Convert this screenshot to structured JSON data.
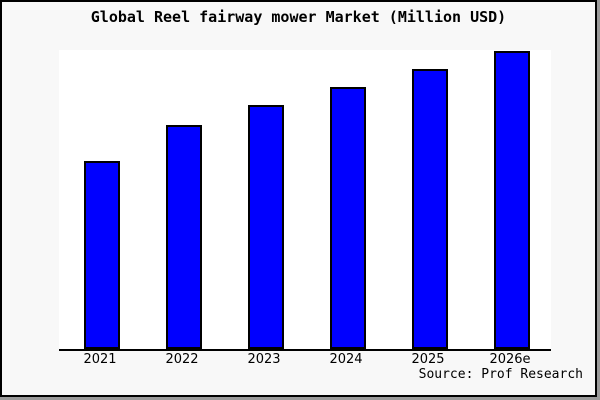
{
  "chart_data": {
    "type": "bar",
    "title": "Global Reel fairway mower Market (Million USD)",
    "categories": [
      "2021",
      "2022",
      "2023",
      "2024",
      "2025",
      "2026e"
    ],
    "values": [
      63,
      75,
      82,
      88,
      94,
      100
    ],
    "values_note": "no y-axis labels shown; values estimated as percent of tallest (2026e) bar",
    "xlabel": "",
    "ylabel": "",
    "y_axis_ticks": [],
    "grid": false,
    "legend": false
  },
  "source": {
    "label": "Source: Prof Research"
  },
  "colors": {
    "bar_fill": "#0000ff",
    "bar_border": "#000000",
    "plot_background": "#ffffff",
    "page_background": "#f8f8f8",
    "frame_border": "#000000"
  }
}
